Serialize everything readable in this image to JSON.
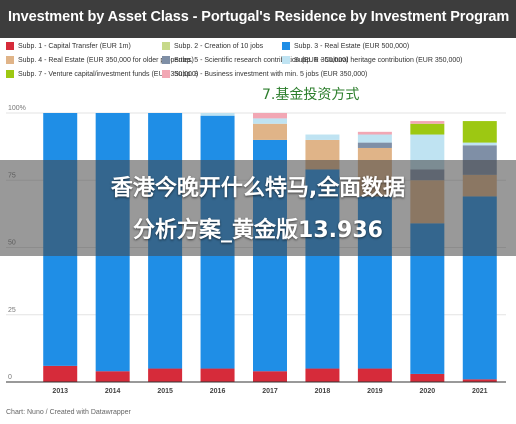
{
  "title": "Investment by Asset Class - Portugal's Residence by Investment Program",
  "legend": [
    {
      "label": "Subp. 1 - Capital Transfer (EUR 1m)",
      "color": "#d62b3a"
    },
    {
      "label": "Subp. 2 - Creation of 10 jobs",
      "color": "#c7d98a"
    },
    {
      "label": "Subp. 3 - Real Estate (EUR 500,000)",
      "color": "#1f8ee6"
    },
    {
      "label": "Subp. 4 - Real Estate (EUR 350,000 for older properties)",
      "color": "#e0b488"
    },
    {
      "label": "Subp. 5 - Scientific research contribution (EUR 350,000)",
      "color": "#7f8fa6"
    },
    {
      "label": "Subp. 6 - Cultural heritage contribution (EUR 350,000)",
      "color": "#bfe3f2"
    },
    {
      "label": "Subp. 7 - Venture capital/investment funds (EUR 350,000)",
      "color": "#9dc812"
    },
    {
      "label": "Subp. 8 - Business investment with min. 5 jobs (EUR 350,000)",
      "color": "#f2a7b4"
    }
  ],
  "overlay_note": "7.基金投资方式",
  "banner": {
    "line1": "香港今晚开什么特马,全面数据",
    "line2": "分析方案_黄金版13.936"
  },
  "footer": "Chart: Nuno / Created with Datawrapper",
  "chart_data": {
    "type": "bar",
    "stacked": true,
    "categories": [
      "2013",
      "2014",
      "2015",
      "2016",
      "2017",
      "2018",
      "2019",
      "2020",
      "2021"
    ],
    "y_ticks": [
      "100%",
      "75",
      "50",
      "25",
      "0"
    ],
    "ylim": [
      0,
      100
    ],
    "series": [
      {
        "name": "Subp. 1 - Capital Transfer (EUR 1m)",
        "color": "#d62b3a",
        "values": [
          6,
          4,
          5,
          5,
          4,
          5,
          5,
          3,
          1
        ]
      },
      {
        "name": "Subp. 2 - Creation of 10 jobs",
        "color": "#c7d98a",
        "values": [
          0,
          0,
          0,
          0,
          0,
          0,
          0,
          0,
          0
        ]
      },
      {
        "name": "Subp. 3 - Real Estate (EUR 500,000)",
        "color": "#1f8ee6",
        "values": [
          94,
          96,
          95,
          94,
          86,
          74,
          64,
          56,
          68
        ]
      },
      {
        "name": "Subp. 4 - Real Estate (EUR 350,000 for older properties)",
        "color": "#e0b488",
        "values": [
          0,
          0,
          0,
          0,
          6,
          11,
          18,
          16,
          8
        ]
      },
      {
        "name": "Subp. 5 - Scientific research contribution (EUR 350,000)",
        "color": "#7f8fa6",
        "values": [
          0,
          0,
          0,
          0,
          0,
          0,
          2,
          4,
          11
        ]
      },
      {
        "name": "Subp. 6 - Cultural heritage contribution (EUR 350,000)",
        "color": "#bfe3f2",
        "values": [
          0,
          0,
          0,
          1,
          2,
          2,
          3,
          13,
          1
        ]
      },
      {
        "name": "Subp. 7 - Venture capital/investment funds (EUR 350,000)",
        "color": "#9dc812",
        "values": [
          0,
          0,
          0,
          0,
          0,
          0,
          0,
          4,
          8
        ]
      },
      {
        "name": "Subp. 8 - Business investment with min. 5 jobs (EUR 350,000)",
        "color": "#f2a7b4",
        "values": [
          0,
          0,
          0,
          0,
          2,
          0,
          1,
          1,
          0
        ]
      }
    ]
  }
}
